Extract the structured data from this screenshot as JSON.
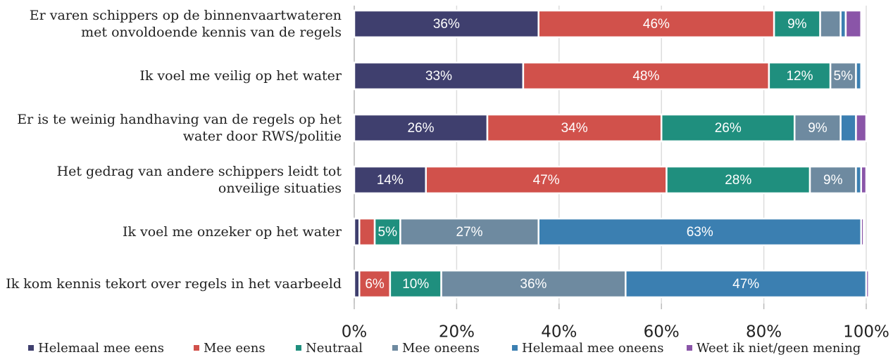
{
  "chart_data": {
    "type": "stacked-bar-horizontal",
    "categories": [
      "Er varen schippers op de binnenvaartwateren\nmet onvoldoende kennis van de regels",
      "Ik voel me veilig op het water",
      "Er is te weinig handhaving van de regels op het\nwater door RWS/politie",
      "Het gedrag van andere schippers leidt tot\nonveilige situaties",
      "Ik voel me onzeker op het water",
      "Ik kom kennis tekort over regels in het vaarbeeld"
    ],
    "series": [
      {
        "name": "Helemaal mee eens",
        "color": "#3f3f6e",
        "values": [
          36,
          33,
          26,
          14,
          1,
          1
        ],
        "value_labels": [
          "36%",
          "33%",
          "26%",
          "14%",
          null,
          null
        ]
      },
      {
        "name": "Mee eens",
        "color": "#d1514b",
        "values": [
          46,
          48,
          34,
          47,
          3,
          6
        ],
        "value_labels": [
          "46%",
          "48%",
          "34%",
          "47%",
          null,
          "6%"
        ]
      },
      {
        "name": "Neutraal",
        "color": "#1f8f7e",
        "values": [
          9,
          12,
          26,
          28,
          5,
          10
        ],
        "value_labels": [
          "9%",
          "12%",
          "26%",
          "28%",
          "5%",
          "10%"
        ]
      },
      {
        "name": "Mee oneens",
        "color": "#6e8aa0",
        "values": [
          4,
          5,
          9,
          9,
          27,
          36
        ],
        "value_labels": [
          null,
          "5%",
          "9%",
          "9%",
          "27%",
          "36%"
        ]
      },
      {
        "name": "Helemaal mee oneens",
        "color": "#3b7fb1",
        "values": [
          1,
          1,
          3,
          1,
          63,
          47
        ],
        "value_labels": [
          null,
          null,
          null,
          null,
          "63%",
          "47%"
        ]
      },
      {
        "name": "Weet ik niet/geen mening",
        "color": "#8a55a8",
        "values": [
          3,
          0,
          2,
          1,
          0.5,
          0.5
        ],
        "value_labels": [
          null,
          null,
          null,
          null,
          null,
          null
        ]
      }
    ],
    "xlim": [
      0,
      100
    ],
    "xticks": [
      {
        "value": 0,
        "label": "0%"
      },
      {
        "value": 20,
        "label": "20%"
      },
      {
        "value": 40,
        "label": "40%"
      },
      {
        "value": 60,
        "label": "60%"
      },
      {
        "value": 80,
        "label": "80%"
      },
      {
        "value": 100,
        "label": "100%"
      }
    ],
    "grid": true,
    "legend": "bottom"
  }
}
